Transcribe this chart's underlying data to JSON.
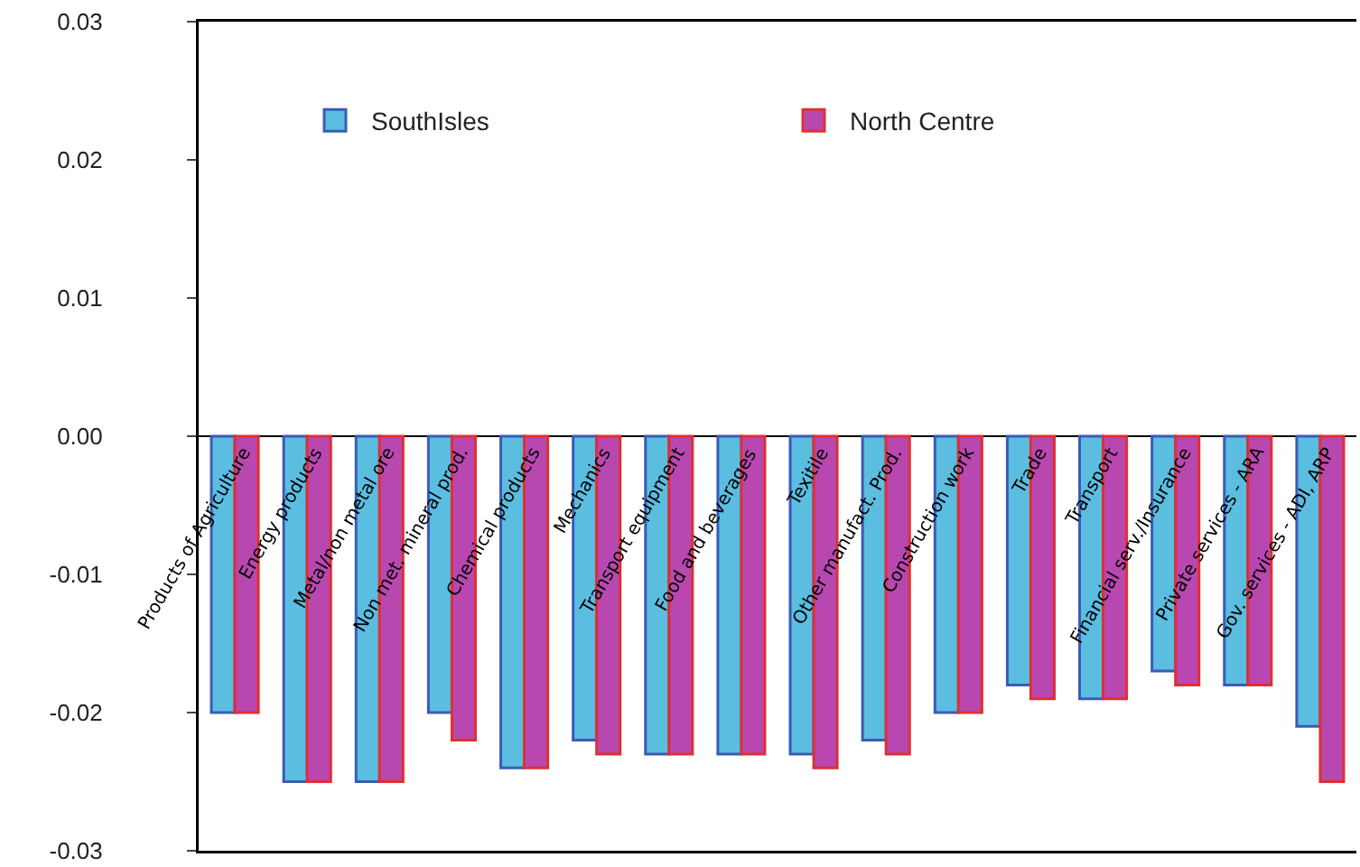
{
  "chart_data": {
    "type": "bar",
    "categories": [
      "Products of Agriculture",
      "Energy products",
      "Metal/non metal ore",
      "Non met. mineral prod.",
      "Chemical products",
      "Mechanics",
      "Transport equipment",
      "Food and beverages",
      "Texitile",
      "Other manufact. Prod.",
      "Construction work",
      "Trade",
      "Transport",
      "Financial serv./Insurance",
      "Private services - ARA",
      "Gov. services - ADI, ARP"
    ],
    "series": [
      {
        "name": "SouthIsles",
        "color": "#5bbde0",
        "values": [
          -0.02,
          -0.025,
          -0.025,
          -0.02,
          -0.024,
          -0.022,
          -0.023,
          -0.023,
          -0.023,
          -0.022,
          -0.02,
          -0.018,
          -0.019,
          -0.017,
          -0.018,
          -0.021
        ]
      },
      {
        "name": "North Centre",
        "color": "#b848b0",
        "values": [
          -0.02,
          -0.025,
          -0.025,
          -0.022,
          -0.024,
          -0.023,
          -0.023,
          -0.023,
          -0.024,
          -0.023,
          -0.02,
          -0.019,
          -0.019,
          -0.018,
          -0.018,
          -0.025
        ]
      }
    ],
    "ylim": [
      -0.03,
      0.03
    ],
    "yticks": [
      -0.03,
      -0.02,
      -0.01,
      {
        "value": 0,
        "label": "0.00"
      },
      0.01,
      0.02,
      0.03
    ],
    "grid": false,
    "legend": "top"
  }
}
